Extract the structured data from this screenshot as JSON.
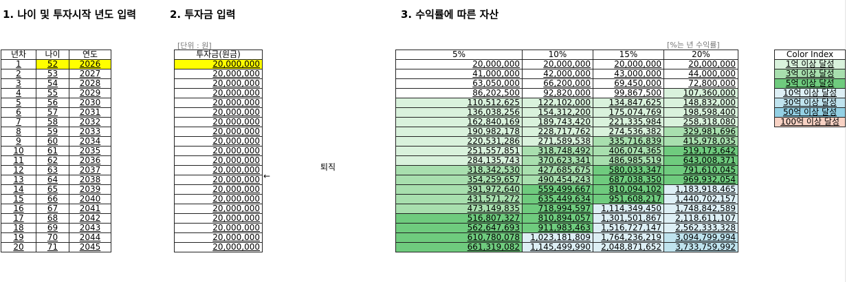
{
  "sections": {
    "s1_title": "1. 나이 및 투자시작 년도 입력",
    "s2_title": "2. 투자금 입력",
    "s3_title": "3. 수익률에 따른 자산"
  },
  "notes": {
    "unit": "[단위 : 원]",
    "rate_unit": "[%는 년 수익률]",
    "retire": "퇴직",
    "arrow": "←"
  },
  "age_table": {
    "headers": [
      "년차",
      "나이",
      "연도"
    ],
    "rows": [
      [
        "1",
        "52",
        "2026"
      ],
      [
        "2",
        "53",
        "2027"
      ],
      [
        "3",
        "54",
        "2028"
      ],
      [
        "4",
        "55",
        "2029"
      ],
      [
        "5",
        "56",
        "2030"
      ],
      [
        "6",
        "57",
        "2031"
      ],
      [
        "7",
        "58",
        "2032"
      ],
      [
        "8",
        "59",
        "2033"
      ],
      [
        "9",
        "60",
        "2034"
      ],
      [
        "10",
        "61",
        "2035"
      ],
      [
        "11",
        "62",
        "2036"
      ],
      [
        "12",
        "63",
        "2037"
      ],
      [
        "13",
        "64",
        "2038"
      ],
      [
        "14",
        "65",
        "2039"
      ],
      [
        "15",
        "66",
        "2040"
      ],
      [
        "16",
        "67",
        "2041"
      ],
      [
        "17",
        "68",
        "2042"
      ],
      [
        "18",
        "69",
        "2043"
      ],
      [
        "19",
        "70",
        "2044"
      ],
      [
        "20",
        "71",
        "2045"
      ]
    ]
  },
  "invest_table": {
    "header": "투자금(원금)",
    "rows": [
      "20,000,000",
      "20,000,000",
      "20,000,000",
      "20,000,000",
      "20,000,000",
      "20,000,000",
      "20,000,000",
      "20,000,000",
      "20,000,000",
      "20,000,000",
      "20,000,000",
      "20,000,000",
      "20,000,000",
      "20,000,000",
      "20,000,000",
      "20,000,000",
      "20,000,000",
      "20,000,000",
      "20,000,000",
      "20,000,000"
    ]
  },
  "returns_table": {
    "headers": [
      "5%",
      "10%",
      "15%",
      "20%"
    ],
    "rows": [
      [
        "20,000,000",
        "20,000,000",
        "20,000,000",
        "20,000,000"
      ],
      [
        "41,000,000",
        "42,000,000",
        "43,000,000",
        "44,000,000"
      ],
      [
        "63,050,000",
        "66,200,000",
        "69,450,000",
        "72,800,000"
      ],
      [
        "86,202,500",
        "92,820,000",
        "99,867,500",
        "107,360,000"
      ],
      [
        "110,512,625",
        "122,102,000",
        "134,847,625",
        "148,832,000"
      ],
      [
        "136,038,256",
        "154,312,200",
        "175,074,769",
        "198,598,400"
      ],
      [
        "162,840,169",
        "189,743,420",
        "221,335,984",
        "258,318,080"
      ],
      [
        "190,982,178",
        "228,717,762",
        "274,536,382",
        "329,981,696"
      ],
      [
        "220,531,286",
        "271,589,538",
        "335,716,839",
        "415,978,035"
      ],
      [
        "251,557,851",
        "318,748,492",
        "406,074,365",
        "519,173,642"
      ],
      [
        "284,135,743",
        "370,623,341",
        "486,985,519",
        "643,008,371"
      ],
      [
        "318,342,530",
        "427,685,675",
        "580,033,347",
        "791,610,045"
      ],
      [
        "354,259,657",
        "490,454,243",
        "687,038,350",
        "969,932,054"
      ],
      [
        "391,972,640",
        "559,499,667",
        "810,094,102",
        "1,183,918,465"
      ],
      [
        "431,571,272",
        "635,449,634",
        "951,608,217",
        "1,440,702,157"
      ],
      [
        "473,149,835",
        "718,994,597",
        "1,114,349,450",
        "1,748,842,589"
      ],
      [
        "516,807,327",
        "810,894,057",
        "1,301,501,867",
        "2,118,611,107"
      ],
      [
        "562,647,693",
        "911,983,463",
        "1,516,727,147",
        "2,562,333,328"
      ],
      [
        "610,780,078",
        "1,023,181,809",
        "1,764,236,219",
        "3,094,799,994"
      ],
      [
        "661,319,082",
        "1,145,499,990",
        "2,048,871,652",
        "3,733,759,992"
      ]
    ]
  },
  "color_index": {
    "header": "Color Index",
    "items": [
      {
        "label": "1억 이상 달성",
        "color": "#d9f2dc"
      },
      {
        "label": "3억 이상 달성",
        "color": "#a8dfae"
      },
      {
        "label": "5억 이상 달성",
        "color": "#6fcb7e"
      },
      {
        "label": "10억 이상 달성",
        "color": "#ddeff5"
      },
      {
        "label": "30억 이상 달성",
        "color": "#bfe3ee"
      },
      {
        "label": "50억 이상 달성",
        "color": "#93d0e4"
      },
      {
        "label": "100억 이상 달성",
        "color": "#f8d2c4"
      }
    ]
  },
  "thresholds": [
    100000000,
    300000000,
    500000000,
    1000000000,
    3000000000,
    5000000000,
    10000000000
  ]
}
